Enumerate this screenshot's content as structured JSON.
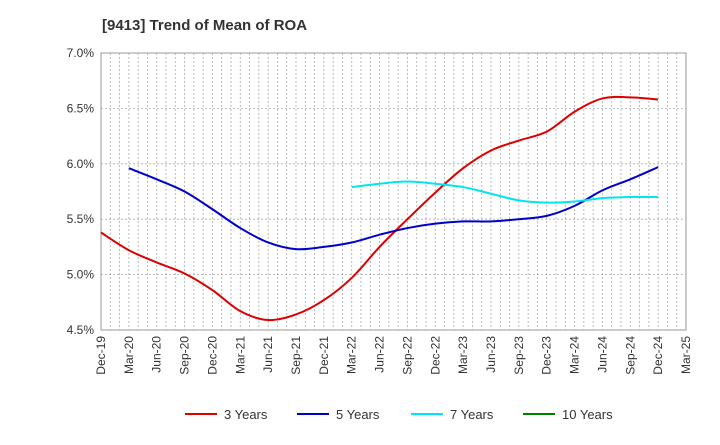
{
  "chart_data": {
    "type": "line",
    "title": "[9413]  Trend of Mean of ROA",
    "xlabel": "",
    "ylabel": "",
    "ylim": [
      4.5,
      7.0
    ],
    "y_ticks": [
      "4.5%",
      "5.0%",
      "5.5%",
      "6.0%",
      "6.5%",
      "7.0%"
    ],
    "y_tick_values": [
      4.5,
      5.0,
      5.5,
      6.0,
      6.5,
      7.0
    ],
    "x_ticks": [
      "Dec-19",
      "Mar-20",
      "Jun-20",
      "Sep-20",
      "Dec-20",
      "Mar-21",
      "Jun-21",
      "Sep-21",
      "Dec-21",
      "Mar-22",
      "Jun-22",
      "Sep-22",
      "Dec-22",
      "Mar-23",
      "Jun-23",
      "Sep-23",
      "Dec-23",
      "Mar-24",
      "Jun-24",
      "Sep-24",
      "Dec-24",
      "Mar-25"
    ],
    "grid": true,
    "legend_position": "bottom",
    "series": [
      {
        "name": "3 Years",
        "color": "#dd0000",
        "points": [
          [
            "Dec-19",
            5.38
          ],
          [
            "Mar-20",
            5.22
          ],
          [
            "Jun-20",
            5.11
          ],
          [
            "Sep-20",
            5.01
          ],
          [
            "Dec-20",
            4.86
          ],
          [
            "Mar-21",
            4.67
          ],
          [
            "Jun-21",
            4.59
          ],
          [
            "Sep-21",
            4.64
          ],
          [
            "Dec-21",
            4.77
          ],
          [
            "Mar-22",
            4.97
          ],
          [
            "Jun-22",
            5.25
          ],
          [
            "Sep-22",
            5.5
          ],
          [
            "Dec-22",
            5.74
          ],
          [
            "Mar-23",
            5.96
          ],
          [
            "Jun-23",
            6.12
          ],
          [
            "Sep-23",
            6.21
          ],
          [
            "Dec-23",
            6.29
          ],
          [
            "Mar-24",
            6.47
          ],
          [
            "Jun-24",
            6.59
          ],
          [
            "Sep-24",
            6.6
          ],
          [
            "Dec-24",
            6.58
          ]
        ]
      },
      {
        "name": "5 Years",
        "color": "#0000cc",
        "points": [
          [
            "Mar-20",
            5.96
          ],
          [
            "Jun-20",
            5.86
          ],
          [
            "Sep-20",
            5.75
          ],
          [
            "Dec-20",
            5.59
          ],
          [
            "Mar-21",
            5.42
          ],
          [
            "Jun-21",
            5.29
          ],
          [
            "Sep-21",
            5.23
          ],
          [
            "Dec-21",
            5.25
          ],
          [
            "Mar-22",
            5.29
          ],
          [
            "Jun-22",
            5.36
          ],
          [
            "Sep-22",
            5.42
          ],
          [
            "Dec-22",
            5.46
          ],
          [
            "Mar-23",
            5.48
          ],
          [
            "Jun-23",
            5.48
          ],
          [
            "Sep-23",
            5.5
          ],
          [
            "Dec-23",
            5.53
          ],
          [
            "Mar-24",
            5.62
          ],
          [
            "Jun-24",
            5.76
          ],
          [
            "Sep-24",
            5.86
          ],
          [
            "Dec-24",
            5.97
          ]
        ]
      },
      {
        "name": "7 Years",
        "color": "#00e5ee",
        "points": [
          [
            "Mar-22",
            5.79
          ],
          [
            "Jun-22",
            5.82
          ],
          [
            "Sep-22",
            5.84
          ],
          [
            "Dec-22",
            5.82
          ],
          [
            "Mar-23",
            5.79
          ],
          [
            "Jun-23",
            5.73
          ],
          [
            "Sep-23",
            5.67
          ],
          [
            "Dec-23",
            5.65
          ],
          [
            "Mar-24",
            5.66
          ],
          [
            "Jun-24",
            5.69
          ],
          [
            "Sep-24",
            5.7
          ],
          [
            "Dec-24",
            5.7
          ]
        ]
      },
      {
        "name": "10 Years",
        "color": "#008000",
        "points": []
      }
    ]
  }
}
